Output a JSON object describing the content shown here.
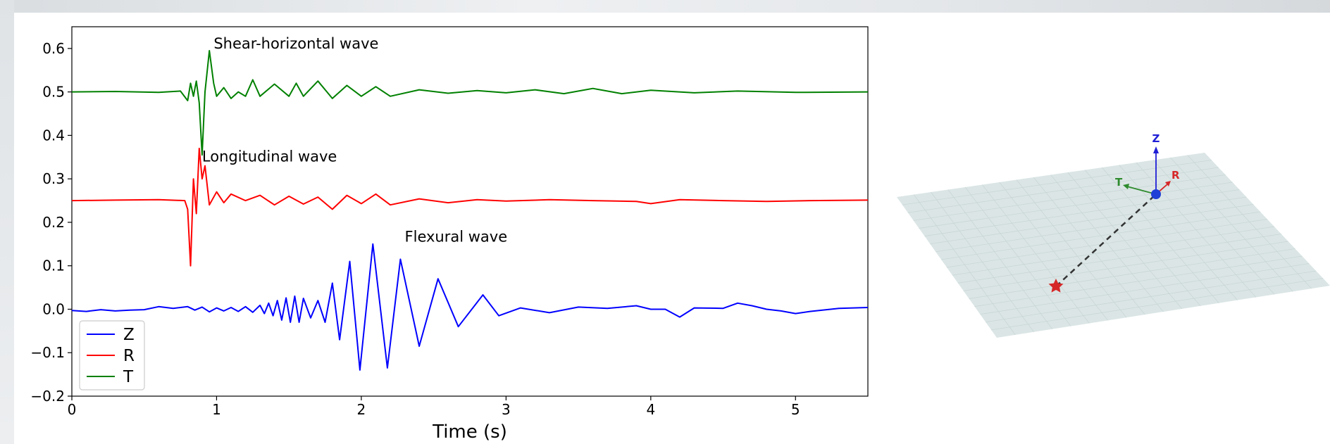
{
  "chart_data": [
    {
      "type": "line",
      "xlabel": "Time (s)",
      "ylabel": "",
      "xlim": [
        0,
        5.5
      ],
      "ylim": [
        -0.2,
        0.65
      ],
      "x_ticks": [
        0,
        1,
        2,
        3,
        4,
        5
      ],
      "y_ticks": [
        -0.2,
        -0.1,
        0.0,
        0.1,
        0.2,
        0.3,
        0.4,
        0.5,
        0.6
      ],
      "x_tick_labels": [
        "0",
        "1",
        "2",
        "3",
        "4",
        "5"
      ],
      "y_tick_labels": [
        "−0.2",
        "−0.1",
        "0.0",
        "0.1",
        "0.2",
        "0.3",
        "0.4",
        "0.5",
        "0.6"
      ],
      "grid": false,
      "legend_position": "lower-left",
      "series": [
        {
          "name": "Z",
          "color": "#0000ff",
          "points": [
            [
              0.0,
              -0.003
            ],
            [
              0.1,
              -0.005
            ],
            [
              0.2,
              -0.001
            ],
            [
              0.3,
              -0.004
            ],
            [
              0.4,
              -0.002
            ],
            [
              0.5,
              -0.001
            ],
            [
              0.6,
              0.006
            ],
            [
              0.7,
              0.002
            ],
            [
              0.8,
              0.006
            ],
            [
              0.85,
              -0.002
            ],
            [
              0.9,
              0.005
            ],
            [
              0.95,
              -0.006
            ],
            [
              1.0,
              0.003
            ],
            [
              1.05,
              -0.004
            ],
            [
              1.1,
              0.004
            ],
            [
              1.15,
              -0.005
            ],
            [
              1.2,
              0.006
            ],
            [
              1.25,
              -0.007
            ],
            [
              1.3,
              0.009
            ],
            [
              1.33,
              -0.01
            ],
            [
              1.36,
              0.014
            ],
            [
              1.39,
              -0.015
            ],
            [
              1.42,
              0.02
            ],
            [
              1.45,
              -0.025
            ],
            [
              1.48,
              0.026
            ],
            [
              1.51,
              -0.03
            ],
            [
              1.54,
              0.03
            ],
            [
              1.57,
              -0.03
            ],
            [
              1.6,
              0.025
            ],
            [
              1.65,
              -0.02
            ],
            [
              1.7,
              0.02
            ],
            [
              1.75,
              -0.03
            ],
            [
              1.8,
              0.06
            ],
            [
              1.85,
              -0.07
            ],
            [
              1.92,
              0.11
            ],
            [
              1.99,
              -0.14
            ],
            [
              2.08,
              0.15
            ],
            [
              2.18,
              -0.135
            ],
            [
              2.27,
              0.115
            ],
            [
              2.4,
              -0.085
            ],
            [
              2.53,
              0.07
            ],
            [
              2.67,
              -0.04
            ],
            [
              2.84,
              0.033
            ],
            [
              2.95,
              -0.015
            ],
            [
              3.1,
              0.003
            ],
            [
              3.3,
              -0.008
            ],
            [
              3.5,
              0.005
            ],
            [
              3.7,
              0.002
            ],
            [
              3.9,
              0.008
            ],
            [
              4.0,
              0.0
            ],
            [
              4.1,
              0.0
            ],
            [
              4.2,
              -0.018
            ],
            [
              4.3,
              0.003
            ],
            [
              4.5,
              0.002
            ],
            [
              4.6,
              0.014
            ],
            [
              4.7,
              0.008
            ],
            [
              4.8,
              0.0
            ],
            [
              4.9,
              -0.004
            ],
            [
              5.0,
              -0.01
            ],
            [
              5.1,
              -0.005
            ],
            [
              5.3,
              0.002
            ],
            [
              5.5,
              0.004
            ]
          ]
        },
        {
          "name": "R",
          "color": "#ff0000",
          "points": [
            [
              0.0,
              0.25
            ],
            [
              0.3,
              0.251
            ],
            [
              0.6,
              0.252
            ],
            [
              0.78,
              0.25
            ],
            [
              0.8,
              0.23
            ],
            [
              0.82,
              0.1
            ],
            [
              0.84,
              0.3
            ],
            [
              0.86,
              0.22
            ],
            [
              0.88,
              0.37
            ],
            [
              0.9,
              0.3
            ],
            [
              0.92,
              0.33
            ],
            [
              0.95,
              0.24
            ],
            [
              1.0,
              0.27
            ],
            [
              1.05,
              0.245
            ],
            [
              1.1,
              0.265
            ],
            [
              1.2,
              0.25
            ],
            [
              1.3,
              0.262
            ],
            [
              1.4,
              0.24
            ],
            [
              1.5,
              0.26
            ],
            [
              1.6,
              0.242
            ],
            [
              1.7,
              0.258
            ],
            [
              1.8,
              0.23
            ],
            [
              1.9,
              0.262
            ],
            [
              2.0,
              0.243
            ],
            [
              2.1,
              0.265
            ],
            [
              2.2,
              0.24
            ],
            [
              2.4,
              0.254
            ],
            [
              2.6,
              0.245
            ],
            [
              2.8,
              0.252
            ],
            [
              3.0,
              0.249
            ],
            [
              3.3,
              0.252
            ],
            [
              3.6,
              0.25
            ],
            [
              3.9,
              0.248
            ],
            [
              4.0,
              0.243
            ],
            [
              4.2,
              0.252
            ],
            [
              4.5,
              0.25
            ],
            [
              4.8,
              0.248
            ],
            [
              5.1,
              0.25
            ],
            [
              5.5,
              0.251
            ]
          ]
        },
        {
          "name": "T",
          "color": "#008000",
          "points": [
            [
              0.0,
              0.5
            ],
            [
              0.3,
              0.501
            ],
            [
              0.6,
              0.499
            ],
            [
              0.75,
              0.502
            ],
            [
              0.8,
              0.48
            ],
            [
              0.82,
              0.52
            ],
            [
              0.84,
              0.49
            ],
            [
              0.86,
              0.525
            ],
            [
              0.88,
              0.475
            ],
            [
              0.9,
              0.355
            ],
            [
              0.92,
              0.5
            ],
            [
              0.95,
              0.595
            ],
            [
              0.98,
              0.52
            ],
            [
              1.0,
              0.49
            ],
            [
              1.05,
              0.51
            ],
            [
              1.1,
              0.485
            ],
            [
              1.15,
              0.5
            ],
            [
              1.2,
              0.49
            ],
            [
              1.25,
              0.528
            ],
            [
              1.3,
              0.49
            ],
            [
              1.4,
              0.518
            ],
            [
              1.5,
              0.49
            ],
            [
              1.55,
              0.52
            ],
            [
              1.6,
              0.49
            ],
            [
              1.7,
              0.525
            ],
            [
              1.8,
              0.485
            ],
            [
              1.9,
              0.515
            ],
            [
              2.0,
              0.49
            ],
            [
              2.1,
              0.512
            ],
            [
              2.2,
              0.49
            ],
            [
              2.4,
              0.505
            ],
            [
              2.6,
              0.497
            ],
            [
              2.8,
              0.503
            ],
            [
              3.0,
              0.498
            ],
            [
              3.2,
              0.505
            ],
            [
              3.4,
              0.496
            ],
            [
              3.6,
              0.508
            ],
            [
              3.8,
              0.496
            ],
            [
              4.0,
              0.504
            ],
            [
              4.3,
              0.498
            ],
            [
              4.6,
              0.502
            ],
            [
              5.0,
              0.499
            ],
            [
              5.5,
              0.5
            ]
          ]
        }
      ],
      "annotations": [
        {
          "text": "Shear-horizontal wave",
          "x": 0.98,
          "y": 0.6
        },
        {
          "text": "Longitudinal wave",
          "x": 0.9,
          "y": 0.34
        },
        {
          "text": "Flexural wave",
          "x": 2.3,
          "y": 0.155
        }
      ]
    },
    {
      "type": "3d-diagram",
      "axis_labels": [
        "Z",
        "R",
        "T"
      ],
      "colors": {
        "Z": "#1f1fd6",
        "R": "#d62728",
        "T": "#2e8b2e",
        "plane": "#dbe5e5",
        "source": "#d62728",
        "receiver": "#1f3fd6"
      }
    }
  ]
}
